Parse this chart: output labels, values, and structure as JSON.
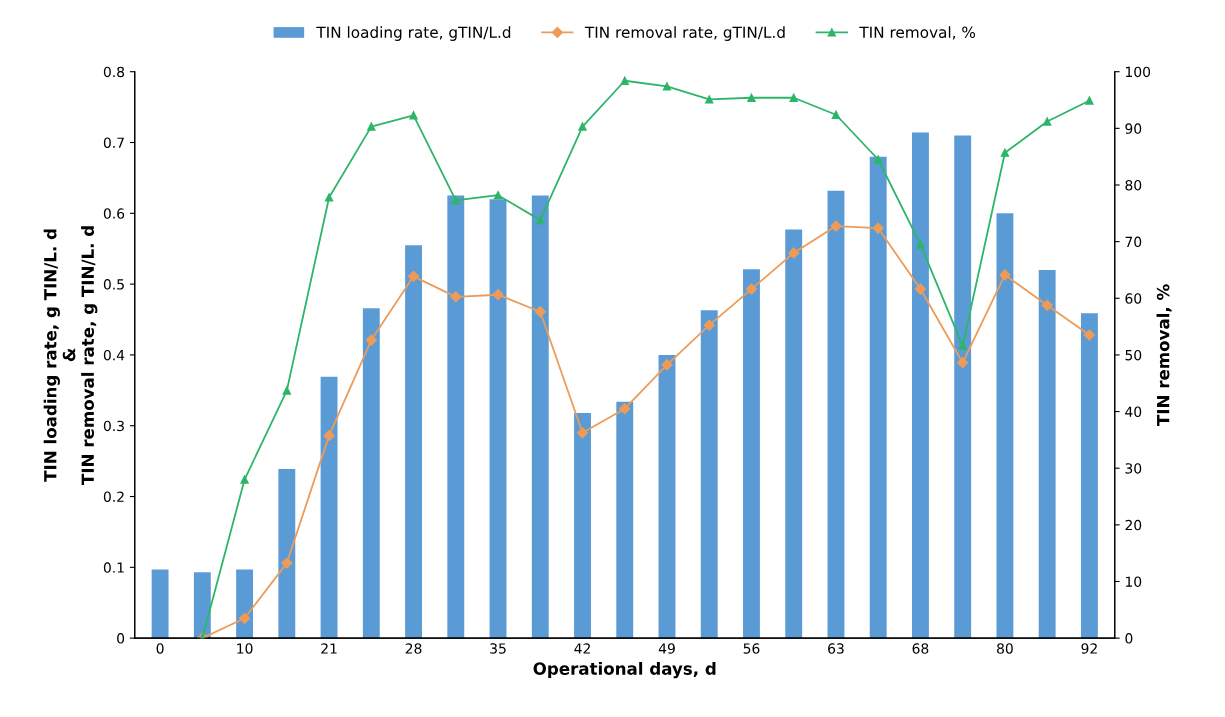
{
  "chart_data": {
    "type": "bar",
    "xlabel": "Operational days, d",
    "ylabel": "TIN loading rate, g TIN/L. d\n&\nTIN removal rate, g TIN/L. d",
    "y2label": "TIN removal, %",
    "categories": [
      "0",
      null,
      "10",
      null,
      "21",
      null,
      "28",
      null,
      "35",
      null,
      "42",
      null,
      "49",
      null,
      "56",
      null,
      "63",
      null,
      "68",
      null,
      "80",
      null,
      "92"
    ],
    "ylim": [
      0,
      0.8
    ],
    "yticks": [
      0,
      0.1,
      0.2,
      0.3,
      0.4,
      0.5,
      0.6,
      0.7,
      0.8
    ],
    "y2lim": [
      0,
      100
    ],
    "y2ticks": [
      0,
      10,
      20,
      30,
      40,
      50,
      60,
      70,
      80,
      90,
      100
    ],
    "grid": false,
    "legend": "top",
    "series": [
      {
        "name": "TIN loading rate, gTIN/L.d",
        "color": "#5b9bd5",
        "values": [
          0.097,
          0.093,
          0.097,
          0.239,
          0.369,
          0.466,
          0.555,
          0.625,
          0.62,
          0.625,
          0.318,
          0.334,
          0.4,
          0.463,
          0.521,
          0.577,
          0.632,
          0.68,
          0.714,
          0.71,
          0.6,
          0.52,
          0.459
        ]
      },
      {
        "name": "TIN removal rate, gTIN/L.d",
        "type": "line",
        "color": "#ed9b59",
        "marker": "diamond",
        "values": [
          null,
          0,
          0.028,
          0.106,
          0.286,
          0.421,
          0.511,
          0.482,
          0.485,
          0.461,
          0.29,
          0.324,
          0.386,
          0.442,
          0.493,
          0.544,
          0.582,
          0.579,
          0.493,
          0.389,
          0.513,
          0.47,
          0.428
        ]
      },
      {
        "name": "TIN removal, %",
        "type": "line",
        "axis": "y2",
        "color": "#2db56a",
        "marker": "triangle",
        "values": [
          null,
          0,
          28,
          43.7,
          77.8,
          90.3,
          92.3,
          77.3,
          78.2,
          73.8,
          90.3,
          98.4,
          97.4,
          95.1,
          95.4,
          95.4,
          92.4,
          84.5,
          69.5,
          51.6,
          85.7,
          91.2,
          94.9
        ]
      }
    ]
  }
}
